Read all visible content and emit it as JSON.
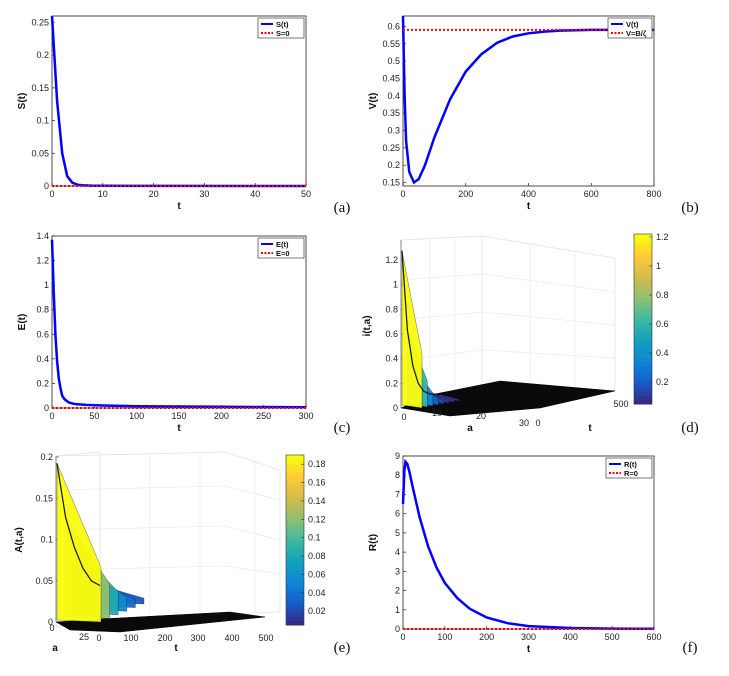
{
  "chart_data": [
    {
      "panel": "(a)",
      "type": "line",
      "xlabel": "t",
      "ylabel": "S(t)",
      "xlim": [
        0,
        50
      ],
      "ylim": [
        0,
        0.26
      ],
      "xticks": [
        0,
        10,
        20,
        30,
        40,
        50
      ],
      "yticks": [
        0,
        0.05,
        0.1,
        0.15,
        0.2,
        0.25
      ],
      "legend_position": "top-right",
      "series": [
        {
          "name": "S(t)",
          "color": "#0000ff",
          "style": "solid",
          "x": [
            0,
            1,
            2,
            3,
            4,
            5,
            6,
            8,
            10,
            20,
            50
          ],
          "y": [
            0.26,
            0.13,
            0.05,
            0.015,
            0.005,
            0.002,
            0.001,
            0.0005,
            0.0003,
            0.0001,
            0
          ]
        },
        {
          "name": "S=0",
          "color": "#ff0000",
          "style": "dotted",
          "x": [
            0,
            50
          ],
          "y": [
            0,
            0
          ]
        }
      ]
    },
    {
      "panel": "(b)",
      "type": "line",
      "xlabel": "t",
      "ylabel": "V(t)",
      "xlim": [
        0,
        800
      ],
      "ylim": [
        0.14,
        0.63
      ],
      "xticks": [
        0,
        200,
        400,
        600,
        800
      ],
      "yticks": [
        0.15,
        0.2,
        0.25,
        0.3,
        0.35,
        0.4,
        0.45,
        0.5,
        0.55,
        0.6
      ],
      "legend_position": "top-right",
      "series": [
        {
          "name": "V(t)",
          "color": "#0000ff",
          "style": "solid",
          "x": [
            0,
            5,
            10,
            20,
            35,
            50,
            70,
            100,
            150,
            200,
            250,
            300,
            350,
            400,
            450,
            500,
            600,
            700,
            800
          ],
          "y": [
            0.63,
            0.4,
            0.27,
            0.18,
            0.15,
            0.16,
            0.2,
            0.28,
            0.39,
            0.47,
            0.52,
            0.553,
            0.571,
            0.58,
            0.585,
            0.588,
            0.59,
            0.59,
            0.59
          ]
        },
        {
          "name": "V=B/ζ",
          "color": "#ff0000",
          "style": "dotted",
          "x": [
            0,
            800
          ],
          "y": [
            0.59,
            0.59
          ]
        }
      ]
    },
    {
      "panel": "(c)",
      "type": "line",
      "xlabel": "t",
      "ylabel": "E(t)",
      "xlim": [
        0,
        300
      ],
      "ylim": [
        0,
        1.4
      ],
      "xticks": [
        0,
        50,
        100,
        150,
        200,
        250,
        300
      ],
      "yticks": [
        0,
        0.2,
        0.4,
        0.6,
        0.8,
        1,
        1.2,
        1.4
      ],
      "legend_position": "top-right",
      "series": [
        {
          "name": "E(t)",
          "color": "#0000ff",
          "style": "solid",
          "x": [
            0,
            2,
            4,
            6,
            8,
            10,
            12,
            15,
            20,
            25,
            30,
            40,
            60,
            100,
            150,
            200,
            250,
            300
          ],
          "y": [
            1.37,
            0.95,
            0.6,
            0.38,
            0.24,
            0.16,
            0.1,
            0.07,
            0.045,
            0.035,
            0.03,
            0.025,
            0.02,
            0.015,
            0.012,
            0.01,
            0.008,
            0.006
          ]
        },
        {
          "name": "E=0",
          "color": "#ff0000",
          "style": "dotted",
          "x": [
            0,
            300
          ],
          "y": [
            0,
            0
          ]
        }
      ]
    },
    {
      "panel": "(d)",
      "type": "surface",
      "xlabel": "a",
      "ylabel": "t",
      "zlabel": "i(t,a)",
      "xticks": [
        0,
        10,
        20,
        30
      ],
      "yticks": [
        0,
        500
      ],
      "zticks": [
        0,
        0.2,
        0.4,
        0.6,
        0.8,
        1,
        1.2
      ],
      "colorbar_ticks": [
        0.2,
        0.4,
        0.6,
        0.8,
        1,
        1.2
      ],
      "colormap": "parula",
      "a_profile": [
        1.25,
        0.6,
        0.3,
        0.15,
        0.08,
        0.05,
        0.04,
        0.03
      ]
    },
    {
      "panel": "(e)",
      "type": "surface",
      "xlabel": "a",
      "ylabel": "t",
      "zlabel": "A(t,a)",
      "xticks": [
        0,
        25
      ],
      "yticks": [
        0,
        100,
        200,
        300,
        400,
        500
      ],
      "zticks": [
        0,
        0.05,
        0.1,
        0.15,
        0.2
      ],
      "colorbar_ticks": [
        0.02,
        0.04,
        0.06,
        0.08,
        0.1,
        0.12,
        0.14,
        0.16,
        0.18
      ],
      "colormap": "parula",
      "a_profile": [
        0.19,
        0.12,
        0.08,
        0.05,
        0.03,
        0.02
      ]
    },
    {
      "panel": "(f)",
      "type": "line",
      "xlabel": "t",
      "ylabel": "R(t)",
      "xlim": [
        0,
        600
      ],
      "ylim": [
        0,
        9
      ],
      "xticks": [
        0,
        100,
        200,
        300,
        400,
        500,
        600
      ],
      "yticks": [
        0,
        1,
        2,
        3,
        4,
        5,
        6,
        7,
        8,
        9
      ],
      "legend_position": "top-right",
      "series": [
        {
          "name": "R(t)",
          "color": "#0000ff",
          "style": "solid",
          "x": [
            0,
            3,
            6,
            10,
            15,
            25,
            40,
            60,
            80,
            100,
            130,
            160,
            200,
            250,
            300,
            400,
            500,
            600
          ],
          "y": [
            6.5,
            8.2,
            8.7,
            8.6,
            8.2,
            7.2,
            5.8,
            4.3,
            3.2,
            2.4,
            1.6,
            1.05,
            0.6,
            0.3,
            0.15,
            0.05,
            0.02,
            0.01
          ]
        },
        {
          "name": "R=0",
          "color": "#ff0000",
          "style": "dotted",
          "x": [
            0,
            600
          ],
          "y": [
            0,
            0
          ]
        }
      ]
    }
  ]
}
